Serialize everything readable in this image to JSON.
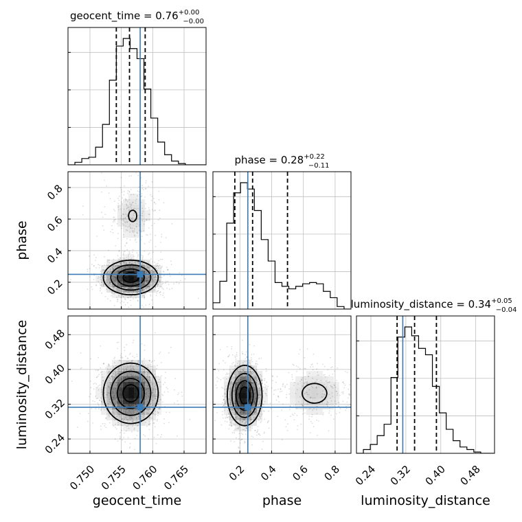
{
  "chart_data": {
    "type": "corner",
    "parameters": [
      "geocent_time",
      "phase",
      "luminosity_distance"
    ],
    "truths": {
      "geocent_time": 0.758,
      "phase": 0.25,
      "luminosity_distance": 0.313
    },
    "quantiles": {
      "geocent_time": [
        0.7542,
        0.7563,
        0.7588
      ],
      "phase": [
        0.168,
        0.28,
        0.5
      ],
      "luminosity_distance": [
        0.3,
        0.34,
        0.39
      ]
    },
    "titles": [
      {
        "param": "geocent_time",
        "text": "geocent_time = 0.76",
        "plus": "+0.00",
        "minus": "−0.00"
      },
      {
        "param": "phase",
        "text": "phase = 0.28",
        "plus": "+0.22",
        "minus": "−0.11"
      },
      {
        "param": "luminosity_distance",
        "text": "luminosity_distance = 0.34",
        "plus": "+0.05",
        "minus": "−0.04"
      }
    ],
    "axes": {
      "geocent_time": {
        "range": [
          0.7465,
          0.7685
        ],
        "ticks": [
          0.75,
          0.755,
          0.76,
          0.765
        ],
        "tick_labels": [
          "0.750",
          "0.755",
          "0.760",
          "0.765"
        ],
        "label": "geocent_time"
      },
      "phase": {
        "range": [
          0.03,
          0.9
        ],
        "ticks": [
          0.2,
          0.4,
          0.6,
          0.8
        ],
        "tick_labels": [
          "0.2",
          "0.4",
          "0.6",
          "0.8"
        ],
        "label": "phase"
      },
      "luminosity_distance": {
        "range": [
          0.207,
          0.523
        ],
        "ticks": [
          0.24,
          0.32,
          0.4,
          0.48
        ],
        "tick_labels": [
          "0.24",
          "0.32",
          "0.40",
          "0.48"
        ],
        "label": "luminosity_distance"
      }
    },
    "histograms": {
      "geocent_time": {
        "bin_edges": [
          0.7465,
          0.7476,
          0.7487,
          0.7498,
          0.7509,
          0.752,
          0.7531,
          0.7542,
          0.7553,
          0.7564,
          0.7575,
          0.7586,
          0.7597,
          0.7608,
          0.7619,
          0.763,
          0.7641,
          0.7652,
          0.7663,
          0.7674,
          0.7685
        ],
        "counts": [
          0.0,
          0.02,
          0.05,
          0.06,
          0.14,
          0.32,
          0.67,
          0.94,
          1.0,
          0.92,
          0.84,
          0.6,
          0.37,
          0.18,
          0.08,
          0.03,
          0.01,
          0.0,
          0.0,
          0.0
        ]
      },
      "phase": {
        "bin_edges": [
          0.03,
          0.0735,
          0.117,
          0.1605,
          0.204,
          0.2475,
          0.291,
          0.3345,
          0.378,
          0.4215,
          0.465,
          0.5085,
          0.552,
          0.5955,
          0.639,
          0.6825,
          0.726,
          0.7695,
          0.813,
          0.8565,
          0.9
        ],
        "counts": [
          0.05,
          0.22,
          0.68,
          0.92,
          1.0,
          0.95,
          0.78,
          0.55,
          0.38,
          0.21,
          0.18,
          0.16,
          0.18,
          0.2,
          0.21,
          0.2,
          0.14,
          0.09,
          0.02,
          0.0
        ]
      },
      "luminosity_distance": {
        "bin_edges": [
          0.207,
          0.2228,
          0.2386,
          0.2544,
          0.2702,
          0.286,
          0.3018,
          0.3176,
          0.3334,
          0.3492,
          0.365,
          0.3808,
          0.3966,
          0.4124,
          0.4282,
          0.444,
          0.4598,
          0.4756,
          0.4914,
          0.5072,
          0.523
        ],
        "counts": [
          0.0,
          0.03,
          0.07,
          0.14,
          0.23,
          0.6,
          0.92,
          1.0,
          0.93,
          0.83,
          0.78,
          0.53,
          0.32,
          0.19,
          0.1,
          0.05,
          0.03,
          0.01,
          0.0,
          0.0
        ]
      }
    },
    "density_2d": {
      "geocent_time|phase": {
        "modes": [
          {
            "x": 0.7565,
            "y": 0.23,
            "sx": 0.0022,
            "sy": 0.055,
            "w": 1.0
          },
          {
            "x": 0.7568,
            "y": 0.62,
            "sx": 0.0018,
            "sy": 0.1,
            "w": 0.15
          }
        ]
      },
      "geocent_time|luminosity_distance": {
        "modes": [
          {
            "x": 0.7565,
            "y": 0.345,
            "sx": 0.0022,
            "sy": 0.035,
            "w": 1.0
          }
        ]
      },
      "phase|luminosity_distance": {
        "modes": [
          {
            "x": 0.23,
            "y": 0.34,
            "sx": 0.055,
            "sy": 0.035,
            "w": 1.0
          },
          {
            "x": 0.67,
            "y": 0.345,
            "sx": 0.11,
            "sy": 0.032,
            "w": 0.18
          }
        ]
      }
    },
    "grid": true,
    "colors": {
      "truth": "#3b7bb5",
      "contours": "#000000",
      "histogram": "#000000"
    }
  }
}
